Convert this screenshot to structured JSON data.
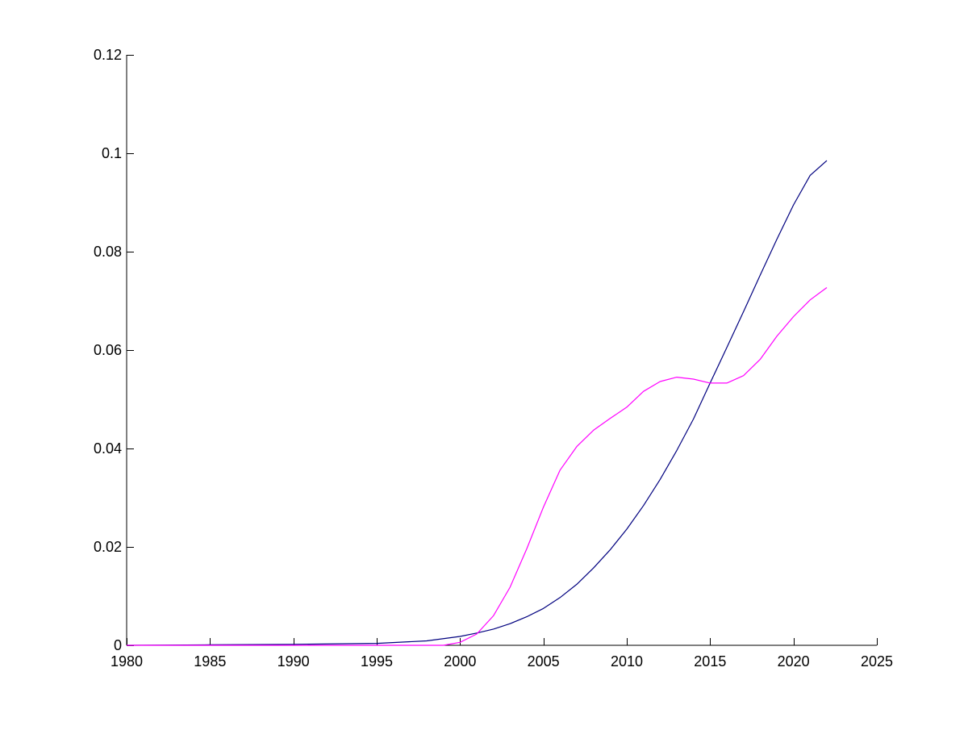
{
  "chart_data": {
    "type": "line",
    "title": "",
    "xlabel": "",
    "ylabel": "",
    "xlim": [
      1980,
      2025
    ],
    "ylim": [
      0,
      0.12
    ],
    "x_ticks": [
      1980,
      1985,
      1990,
      1995,
      2000,
      2005,
      2010,
      2015,
      2020,
      2025
    ],
    "x_tick_labels": [
      "1980",
      "1985",
      "1990",
      "1995",
      "2000",
      "2005",
      "2010",
      "2015",
      "2020",
      "2025"
    ],
    "y_ticks": [
      0,
      0.02,
      0.04,
      0.06,
      0.08,
      0.1,
      0.12
    ],
    "y_tick_labels": [
      "0",
      "0.02",
      "0.04",
      "0.06",
      "0.08",
      "0.1",
      "0.12"
    ],
    "grid": false,
    "legend": "none",
    "series": [
      {
        "color": "#00007f",
        "x": [
          1980,
          1985,
          1990,
          1995,
          1998,
          2000,
          2001,
          2002,
          2003,
          2004,
          2005,
          2006,
          2007,
          2008,
          2009,
          2010,
          2011,
          2012,
          2013,
          2014,
          2015,
          2016,
          2017,
          2018,
          2019,
          2020,
          2021,
          2022
        ],
        "y": [
          0,
          0.0001,
          0.0002,
          0.0004,
          0.0009,
          0.0018,
          0.0025,
          0.0033,
          0.0044,
          0.0058,
          0.0075,
          0.0097,
          0.0124,
          0.0157,
          0.0194,
          0.0236,
          0.0284,
          0.0337,
          0.0396,
          0.046,
          0.0533,
          0.0605,
          0.0678,
          0.0752,
          0.0825,
          0.0895,
          0.0955,
          0.0985
        ]
      },
      {
        "color": "#ff00ff",
        "x": [
          1980,
          1999,
          2000,
          2001,
          2002,
          2003,
          2004,
          2005,
          2006,
          2007,
          2008,
          2009,
          2010,
          2011,
          2012,
          2013,
          2014,
          2015,
          2016,
          2017,
          2018,
          2019,
          2020,
          2021,
          2022
        ],
        "y": [
          0,
          0,
          0.0006,
          0.0023,
          0.006,
          0.0118,
          0.0196,
          0.0281,
          0.0356,
          0.0404,
          0.0437,
          0.0461,
          0.0484,
          0.0516,
          0.0536,
          0.0545,
          0.0541,
          0.0533,
          0.0533,
          0.0548,
          0.0581,
          0.0628,
          0.0668,
          0.0702,
          0.0727
        ]
      }
    ]
  }
}
